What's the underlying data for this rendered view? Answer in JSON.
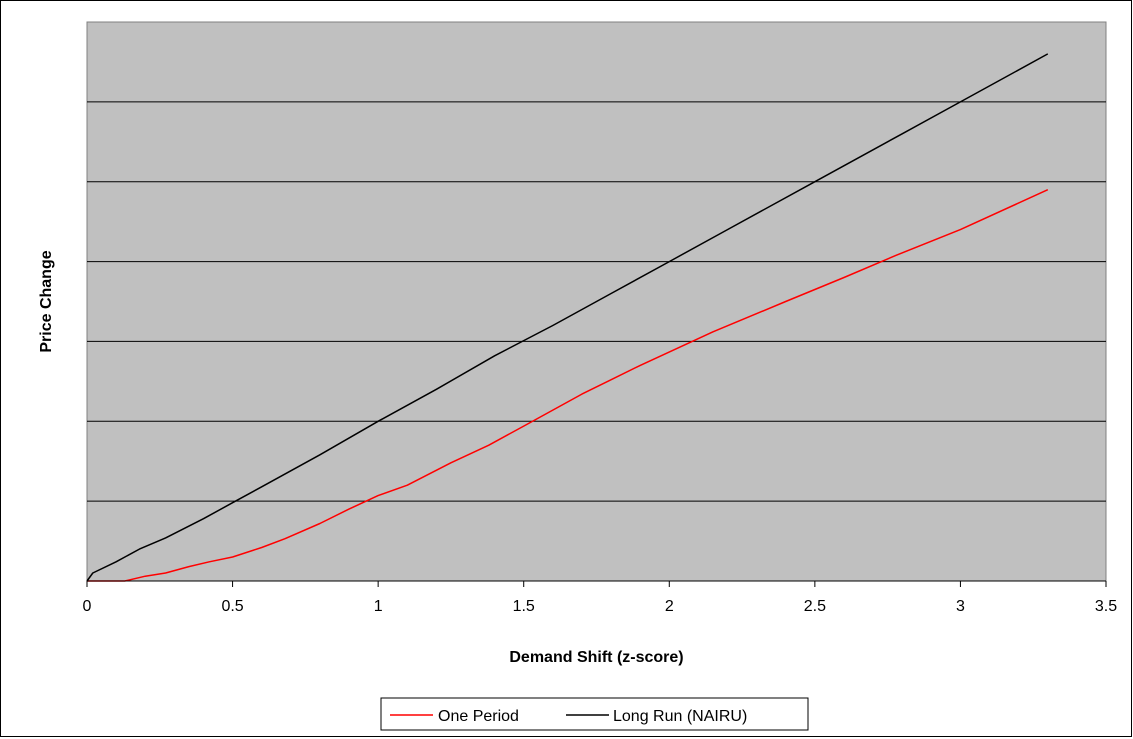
{
  "chart_data": {
    "type": "line",
    "title": "",
    "xlabel": "Demand Shift (z-score)",
    "ylabel": "Price Change",
    "xlim": [
      0,
      3.5
    ],
    "ylim": [
      0,
      7
    ],
    "x_ticks": [
      "0",
      "0.5",
      "1",
      "1.5",
      "2",
      "2.5",
      "3",
      "3.5"
    ],
    "y_ticks_labeled": false,
    "grid": "horizontal",
    "legend_position": "bottom",
    "plot_background": "#c0c0c0",
    "series": [
      {
        "name": "One Period",
        "color": "#ff0000",
        "points": [
          [
            0,
            0
          ],
          [
            0.13,
            0
          ],
          [
            0.2,
            0.06
          ],
          [
            0.27,
            0.1
          ],
          [
            0.35,
            0.18
          ],
          [
            0.42,
            0.24
          ],
          [
            0.5,
            0.3
          ],
          [
            0.6,
            0.42
          ],
          [
            0.68,
            0.53
          ],
          [
            0.8,
            0.72
          ],
          [
            0.9,
            0.9
          ],
          [
            1.0,
            1.07
          ],
          [
            1.1,
            1.2
          ],
          [
            1.25,
            1.48
          ],
          [
            1.38,
            1.7
          ],
          [
            1.5,
            1.94
          ],
          [
            1.7,
            2.34
          ],
          [
            1.9,
            2.7
          ],
          [
            2.15,
            3.12
          ],
          [
            2.4,
            3.5
          ],
          [
            2.6,
            3.8
          ],
          [
            2.78,
            4.08
          ],
          [
            3.0,
            4.4
          ],
          [
            3.3,
            4.9
          ]
        ]
      },
      {
        "name": "Long Run (NAIRU)",
        "color": "#000000",
        "points": [
          [
            0,
            0
          ],
          [
            0.02,
            0.1
          ],
          [
            0.1,
            0.24
          ],
          [
            0.18,
            0.4
          ],
          [
            0.27,
            0.54
          ],
          [
            0.4,
            0.78
          ],
          [
            0.5,
            0.98
          ],
          [
            0.6,
            1.18
          ],
          [
            0.8,
            1.58
          ],
          [
            1.0,
            2.0
          ],
          [
            1.2,
            2.4
          ],
          [
            1.4,
            2.82
          ],
          [
            1.6,
            3.2
          ],
          [
            1.8,
            3.6
          ],
          [
            2.0,
            4.0
          ],
          [
            2.2,
            4.4
          ],
          [
            2.5,
            5.0
          ],
          [
            2.8,
            5.6
          ],
          [
            3.0,
            6.0
          ],
          [
            3.3,
            6.6
          ]
        ]
      }
    ]
  }
}
